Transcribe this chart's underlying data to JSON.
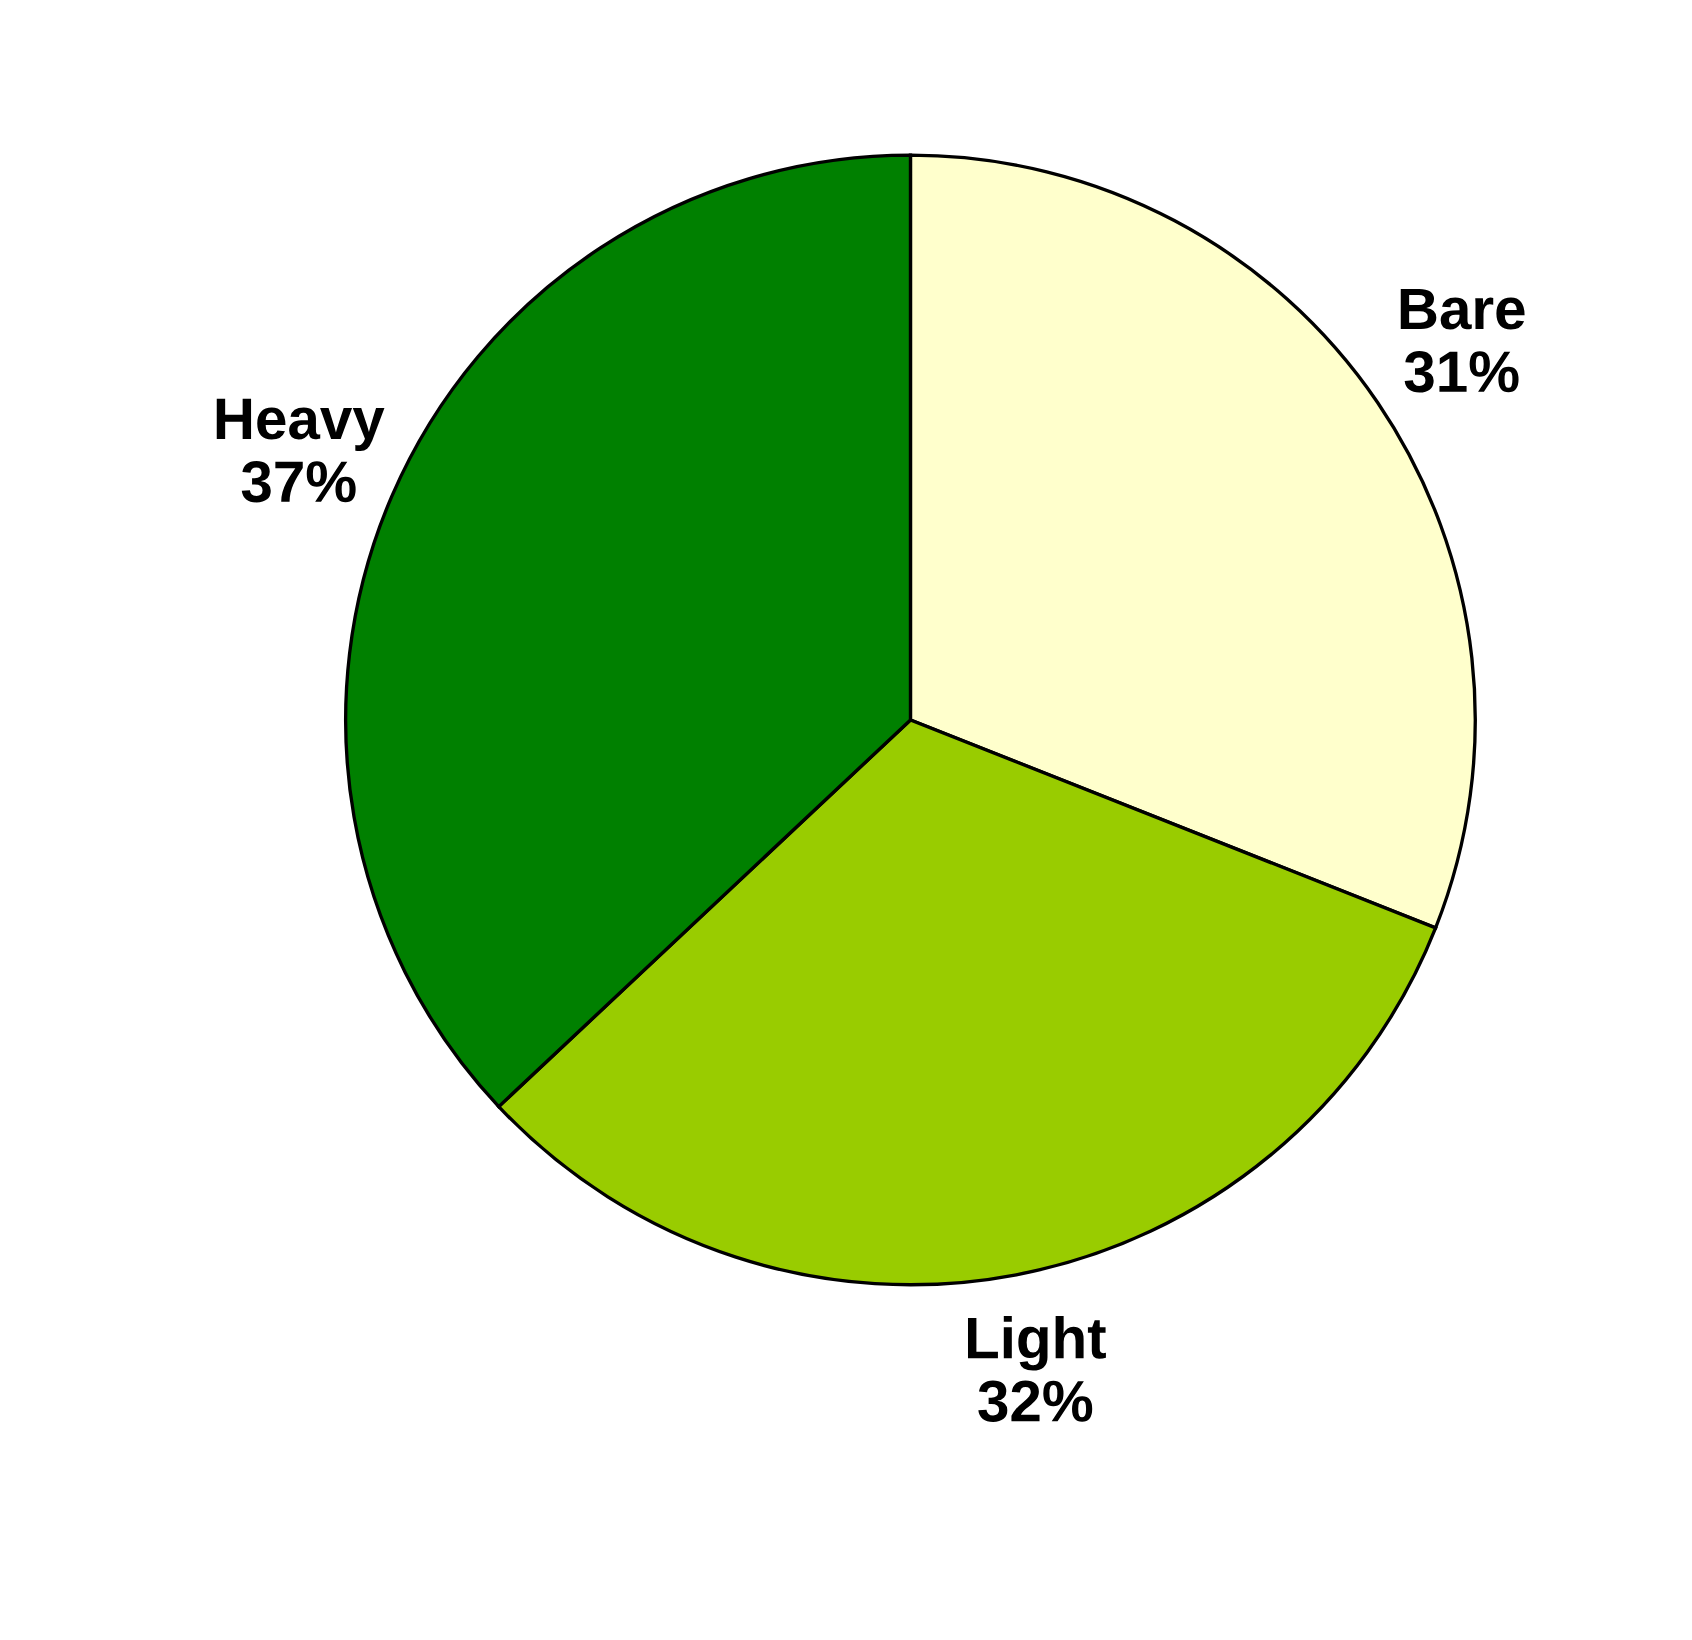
{
  "chart_data": {
    "type": "pie",
    "categories": [
      "Bare",
      "Light",
      "Heavy"
    ],
    "values": [
      31,
      32,
      37
    ],
    "value_labels": [
      "31%",
      "32%",
      "37%"
    ],
    "colors": [
      "#ffffcc",
      "#99cc00",
      "#008000"
    ]
  }
}
